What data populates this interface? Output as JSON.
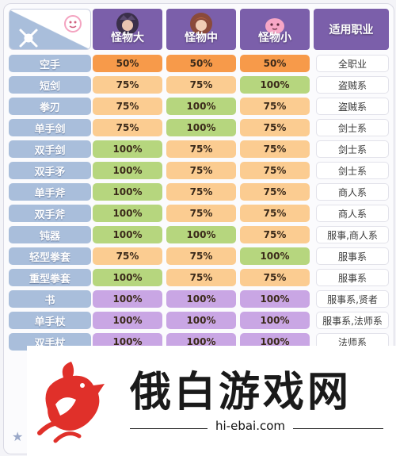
{
  "header": {
    "columns": [
      {
        "label": "怪物大",
        "avatar": "monster-large-avatar-icon"
      },
      {
        "label": "怪物中",
        "avatar": "monster-medium-avatar-icon"
      },
      {
        "label": "怪物小",
        "avatar": "monster-small-avatar-icon"
      }
    ],
    "job_label": "适用职业",
    "corner_icons": [
      "crossed-swords-icon",
      "poring-icon"
    ]
  },
  "rows": [
    {
      "weapon": "空手",
      "values": [
        "50%",
        "50%",
        "50%"
      ],
      "job": "全职业"
    },
    {
      "weapon": "短剑",
      "values": [
        "75%",
        "75%",
        "100%"
      ],
      "job": "盗贼系"
    },
    {
      "weapon": "拳刃",
      "values": [
        "75%",
        "100%",
        "75%"
      ],
      "job": "盗贼系"
    },
    {
      "weapon": "单手剑",
      "values": [
        "75%",
        "100%",
        "75%"
      ],
      "job": "剑士系"
    },
    {
      "weapon": "双手剑",
      "values": [
        "100%",
        "75%",
        "75%"
      ],
      "job": "剑士系"
    },
    {
      "weapon": "双手矛",
      "values": [
        "100%",
        "75%",
        "75%"
      ],
      "job": "剑士系"
    },
    {
      "weapon": "单手斧",
      "values": [
        "100%",
        "75%",
        "75%"
      ],
      "job": "商人系"
    },
    {
      "weapon": "双手斧",
      "values": [
        "100%",
        "75%",
        "75%"
      ],
      "job": "商人系"
    },
    {
      "weapon": "钝器",
      "values": [
        "100%",
        "100%",
        "75%"
      ],
      "job": "服事,商人系"
    },
    {
      "weapon": "轻型拳套",
      "values": [
        "75%",
        "75%",
        "100%"
      ],
      "job": "服事系"
    },
    {
      "weapon": "重型拳套",
      "values": [
        "100%",
        "75%",
        "75%"
      ],
      "job": "服事系"
    },
    {
      "weapon": "书",
      "values": [
        "100%",
        "100%",
        "100%"
      ],
      "job": "服事系,贤者"
    },
    {
      "weapon": "单手杖",
      "values": [
        "100%",
        "100%",
        "100%"
      ],
      "job": "服事系,法师系"
    },
    {
      "weapon": "双手杖",
      "values": [
        "100%",
        "100%",
        "100%"
      ],
      "job": "法师系"
    }
  ],
  "colors": {
    "header_purple": "#7b5faa",
    "weapon_blue": "#a9bedb",
    "half": "#f79a4a",
    "reduced": "#fbcc91",
    "full": "#b6d67e",
    "magic": "#c9a6e4"
  },
  "watermark": {
    "brand": "俄白游戏网",
    "url": "hi-ebai.com",
    "logo": "rooster-logo-icon"
  }
}
